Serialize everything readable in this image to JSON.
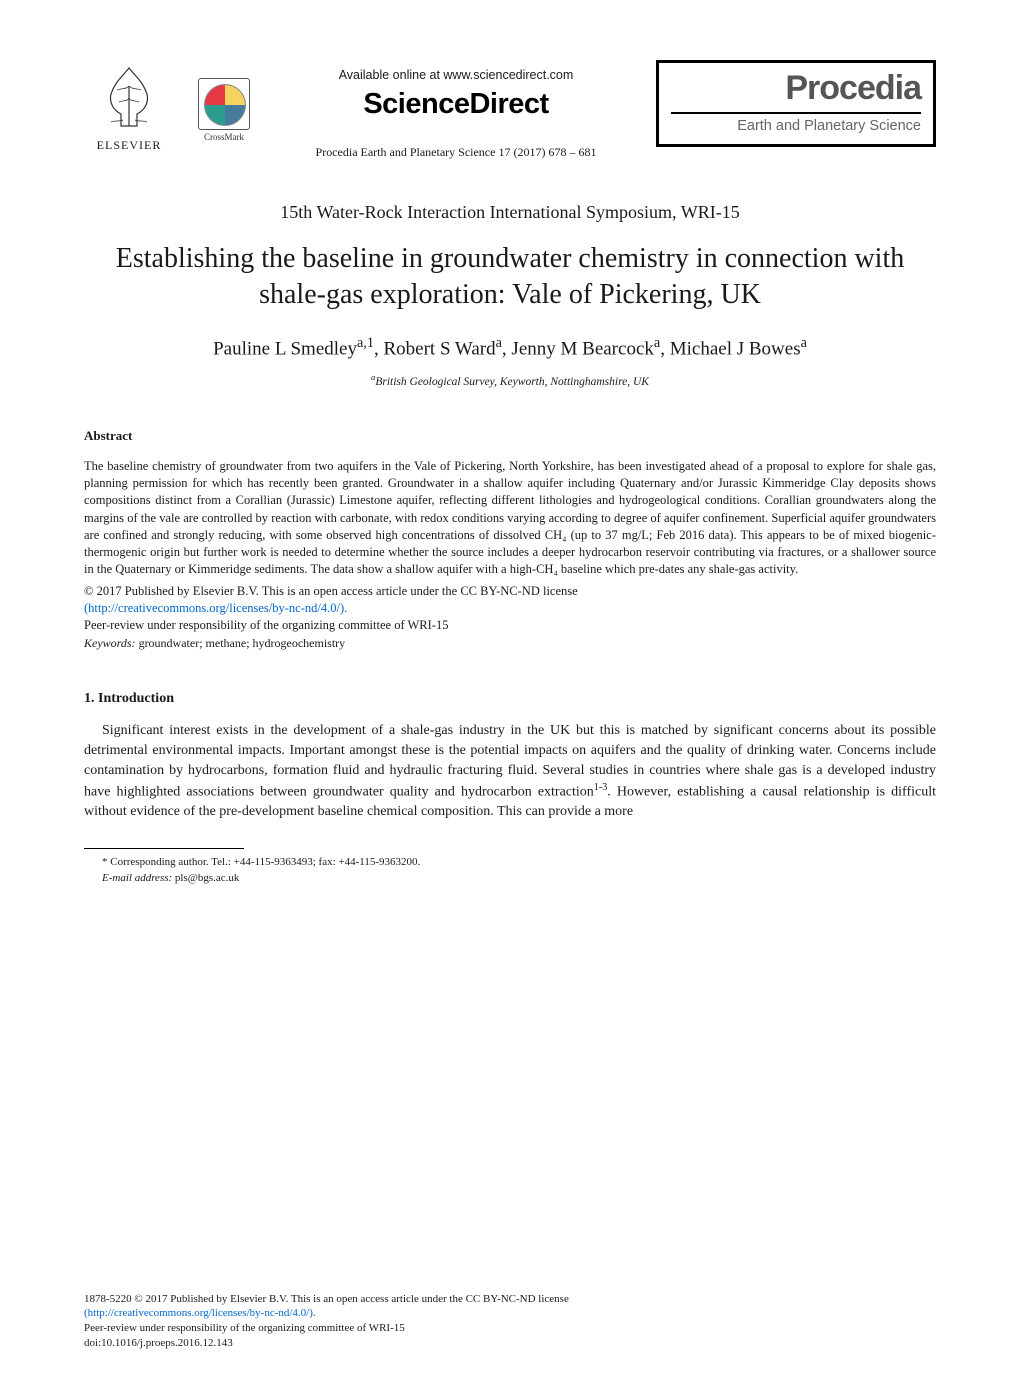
{
  "header": {
    "elsevier_label": "ELSEVIER",
    "crossmark_label": "CrossMark",
    "available_at": "Available online at www.sciencedirect.com",
    "sciencedirect": "ScienceDirect",
    "citation": "Procedia Earth and Planetary Science 17 (2017) 678 – 681",
    "procedia_title": "Procedia",
    "procedia_subtitle": "Earth and Planetary Science"
  },
  "symposium": "15th Water-Rock Interaction International Symposium, WRI-15",
  "title": "Establishing the baseline in groundwater chemistry in connection with shale-gas exploration: Vale of Pickering, UK",
  "authors_html": "Pauline L Smedley<sup>a,1</sup>, Robert S Ward<sup>a</sup>, Jenny M Bearcock<sup>a</sup>, Michael J Bowes<sup>a</sup>",
  "affiliation_html": "<sup>a</sup>British Geological Survey, Keyworth, Nottinghamshire, UK",
  "abstract": {
    "heading": "Abstract",
    "text": "The baseline chemistry of groundwater from two aquifers in the Vale of Pickering, North Yorkshire, has been investigated ahead of a proposal to explore for shale gas, planning permission for which has recently been granted. Groundwater in a shallow aquifer including Quaternary and/or Jurassic Kimmeridge Clay deposits shows compositions distinct from a Corallian (Jurassic) Limestone aquifer, reflecting different lithologies and hydrogeological conditions. Corallian groundwaters along the margins of the vale are controlled by reaction with carbonate, with redox conditions varying according to degree of aquifer confinement. Superficial aquifer groundwaters are confined and strongly reducing, with some observed high concentrations of dissolved CH₄ (up to 37 mg/L; Feb 2016 data). This appears to be of mixed biogenic-thermogenic origin but further work is needed to determine whether the source includes a deeper hydrocarbon reservoir contributing via fractures, or a shallower source in the Quaternary or Kimmeridge sediments. The data show a shallow aquifer with a high-CH₄ baseline which pre-dates any shale-gas activity.",
    "license_line1": "© 2017 Published by Elsevier B.V. This is an open access article under the CC BY-NC-ND license",
    "license_link": "(http://creativecommons.org/licenses/by-nc-nd/4.0/).",
    "peer_review": "Peer-review under responsibility of the organizing committee of WRI-15",
    "keywords_label": "Keywords:",
    "keywords_text": " groundwater; methane; hydrogeochemistry"
  },
  "section1": {
    "heading": "1. Introduction",
    "paragraph_html": "Significant interest exists in the development of a shale-gas industry in the UK but this is matched by significant concerns about its possible detrimental environmental impacts. Important amongst these is the potential impacts on aquifers and the quality of drinking water. Concerns include contamination by hydrocarbons, formation fluid and hydraulic fracturing fluid. Several studies in countries where shale gas is a developed industry have highlighted associations between groundwater quality and hydrocarbon extraction<span class=\"sup-inline\">1-3</span>. However, establishing a causal relationship is difficult without evidence of the pre-development baseline chemical composition. This can provide a more"
  },
  "footnote": {
    "corresponding": "* Corresponding author. Tel.: +44-115-9363493; fax: +44-115-9363200.",
    "email_label": "E-mail address:",
    "email_value": " pls@bgs.ac.uk"
  },
  "footer": {
    "issn_line": "1878-5220 © 2017 Published by Elsevier B.V. This is an open access article under the CC BY-NC-ND license",
    "license_link": "(http://creativecommons.org/licenses/by-nc-nd/4.0/).",
    "peer_review": "Peer-review under responsibility of the organizing committee of WRI-15",
    "doi": "doi:10.1016/j.proeps.2016.12.143"
  },
  "colors": {
    "text": "#1a1a1a",
    "link": "#0066cc",
    "procedia_text": "#555555",
    "procedia_sub": "#666666",
    "border": "#000000",
    "background": "#ffffff"
  },
  "typography": {
    "body_font": "Times New Roman",
    "brand_font": "Arial",
    "title_size_pt": 21,
    "authors_size_pt": 14,
    "body_size_pt": 10.5,
    "abstract_size_pt": 9.5,
    "footnote_size_pt": 8.5
  },
  "crossmark_colors": {
    "tl": "#e63946",
    "tr": "#f4d35e",
    "bl": "#2a9d8f",
    "br": "#457b9d"
  }
}
